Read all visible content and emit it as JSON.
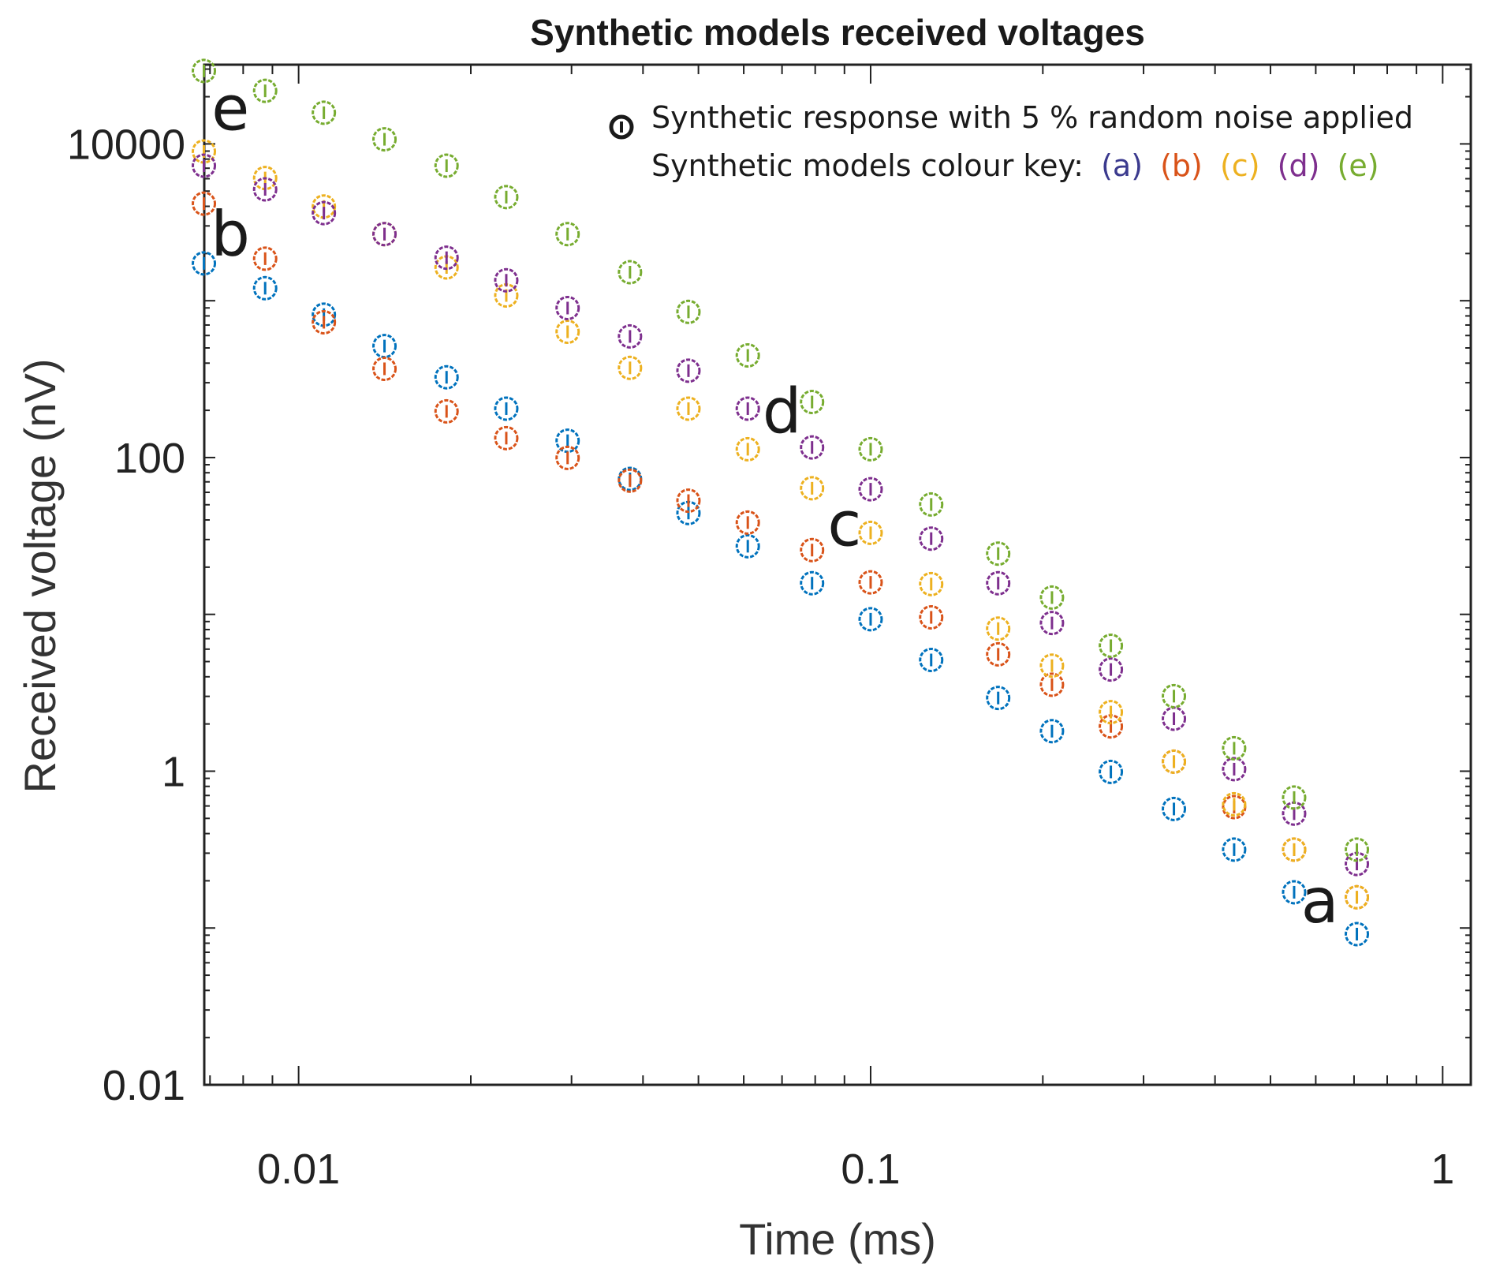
{
  "chart_data": {
    "type": "scatter",
    "title": "Synthetic models received voltages",
    "xlabel": "Time (ms)",
    "ylabel": "Received voltage (nV)",
    "xscale": "log",
    "yscale": "log",
    "xlim": [
      0.00684,
      1.12
    ],
    "ylim": [
      0.01,
      32000
    ],
    "xticks": [
      {
        "value": 0.01,
        "label": "0.01"
      },
      {
        "value": 0.1,
        "label": "0.1"
      },
      {
        "value": 1,
        "label": "1"
      }
    ],
    "yticks": [
      {
        "value": 0.01,
        "label": "0.01"
      },
      {
        "value": 1,
        "label": "1"
      },
      {
        "value": 100,
        "label": "100"
      },
      {
        "value": 10000,
        "label": "10000"
      }
    ],
    "grid": false,
    "legend": {
      "placement": "top-right",
      "marker_text": "Synthetic response with 5 % random noise applied",
      "key_prefix": "Synthetic models colour key:",
      "key_items": [
        {
          "label": "(a)",
          "color": "#3b3a8e"
        },
        {
          "label": "(b)",
          "color": "#D95319"
        },
        {
          "label": "(c)",
          "color": "#EDB120"
        },
        {
          "label": "(d)",
          "color": "#7E2F8E"
        },
        {
          "label": "(e)",
          "color": "#77AC30"
        }
      ]
    },
    "x": [
      0.00683,
      0.00874,
      0.01107,
      0.01413,
      0.01814,
      0.02307,
      0.02953,
      0.03796,
      0.04803,
      0.06099,
      0.079,
      0.1,
      0.1276,
      0.1671,
      0.2075,
      0.263,
      0.339,
      0.432,
      0.55,
      0.708
    ],
    "series": [
      {
        "name": "a",
        "color": "#0072BD",
        "values": [
          1730,
          1202,
          815,
          514,
          325,
          205,
          128,
          73.1,
          44.3,
          27.2,
          15.8,
          9.31,
          5.12,
          2.93,
          1.8,
          0.989,
          0.574,
          0.316,
          0.169,
          0.0914
        ]
      },
      {
        "name": "b",
        "color": "#D95319",
        "values": [
          4160,
          1854,
          729,
          368,
          197,
          133,
          99.5,
          71.2,
          53.1,
          38.5,
          25.7,
          16.0,
          9.57,
          5.56,
          3.56,
          1.93,
          1.15,
          0.59,
          0.316,
          0.157
        ]
      },
      {
        "name": "c",
        "color": "#EDB120",
        "values": [
          8950,
          6060,
          3990,
          2660,
          1630,
          1080,
          634,
          373,
          205,
          113,
          63.7,
          33.1,
          15.6,
          8.11,
          4.71,
          2.38,
          1.15,
          0.615,
          0.316,
          0.157
        ]
      },
      {
        "name": "d",
        "color": "#7E2F8E",
        "values": [
          7260,
          5130,
          3620,
          2660,
          1880,
          1350,
          898,
          592,
          358,
          205,
          116,
          62.8,
          30.4,
          15.8,
          8.81,
          4.45,
          2.16,
          1.03,
          0.536,
          0.256
        ]
      },
      {
        "name": "e",
        "color": "#77AC30",
        "values": [
          29200,
          21800,
          15800,
          10700,
          7260,
          4580,
          2660,
          1520,
          849,
          448,
          226,
          113,
          50.2,
          24.4,
          12.8,
          6.31,
          3.01,
          1.4,
          0.679,
          0.316
        ]
      }
    ],
    "annotations": [
      {
        "text": "e",
        "series": "e",
        "near_x": 0.0076,
        "near_y": 17000
      },
      {
        "text": "b",
        "series": "b",
        "near_x": 0.0076,
        "near_y": 2700
      },
      {
        "text": "d",
        "series": "d",
        "near_x": 0.07,
        "near_y": 200
      },
      {
        "text": "c",
        "series": "c",
        "near_x": 0.09,
        "near_y": 38
      },
      {
        "text": "a",
        "series": "a",
        "near_x": 0.61,
        "near_y": 0.15
      }
    ]
  }
}
